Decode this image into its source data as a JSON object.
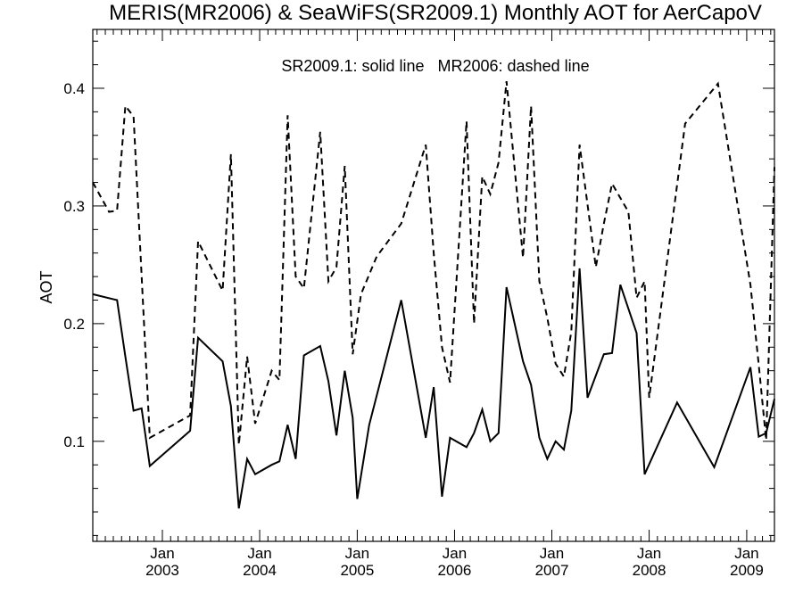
{
  "chart_data": {
    "type": "line",
    "title": "MERIS(MR2006) & SeaWiFS(SR2009.1) Monthly AOT for AerCapoV",
    "ylabel": "AOT",
    "annotation": "SR2009.1: solid line   MR2006: dashed line",
    "x_axis": {
      "type": "date",
      "range": [
        "2002-04-15",
        "2009-04-15"
      ],
      "ticks": [
        {
          "date": "2003-01-01",
          "month": "Jan",
          "year": "2003"
        },
        {
          "date": "2004-01-01",
          "month": "Jan",
          "year": "2004"
        },
        {
          "date": "2005-01-01",
          "month": "Jan",
          "year": "2005"
        },
        {
          "date": "2006-01-01",
          "month": "Jan",
          "year": "2006"
        },
        {
          "date": "2007-01-01",
          "month": "Jan",
          "year": "2007"
        },
        {
          "date": "2008-01-01",
          "month": "Jan",
          "year": "2008"
        },
        {
          "date": "2009-01-01",
          "month": "Jan",
          "year": "2009"
        }
      ]
    },
    "y_axis": {
      "range": [
        0.015,
        0.45
      ],
      "ticks": [
        0.1,
        0.2,
        0.3,
        0.4
      ],
      "tick_labels": [
        "0.1",
        "0.2",
        "0.3",
        "0.4"
      ]
    },
    "series": [
      {
        "name": "SR2009.1",
        "style": "solid",
        "color": "#000000",
        "points": [
          [
            "2002-04-15",
            0.225
          ],
          [
            "2002-07-15",
            0.22
          ],
          [
            "2002-08-15",
            0.172
          ],
          [
            "2002-09-15",
            0.126
          ],
          [
            "2002-10-15",
            0.128
          ],
          [
            "2002-11-15",
            0.079
          ],
          [
            "2003-04-15",
            0.109
          ],
          [
            "2003-05-15",
            0.188
          ],
          [
            "2003-08-15",
            0.168
          ],
          [
            "2003-09-15",
            0.13
          ],
          [
            "2003-10-15",
            0.043
          ],
          [
            "2003-11-15",
            0.085
          ],
          [
            "2003-12-15",
            0.072
          ],
          [
            "2004-02-15",
            0.08
          ],
          [
            "2004-03-15",
            0.083
          ],
          [
            "2004-04-15",
            0.114
          ],
          [
            "2004-05-15",
            0.085
          ],
          [
            "2004-06-15",
            0.173
          ],
          [
            "2004-08-15",
            0.181
          ],
          [
            "2004-09-15",
            0.151
          ],
          [
            "2004-10-15",
            0.105
          ],
          [
            "2004-11-15",
            0.16
          ],
          [
            "2004-12-15",
            0.12
          ],
          [
            "2005-01-01",
            0.051
          ],
          [
            "2005-02-15",
            0.114
          ],
          [
            "2005-06-15",
            0.22
          ],
          [
            "2005-09-15",
            0.103
          ],
          [
            "2005-10-15",
            0.146
          ],
          [
            "2005-11-15",
            0.053
          ],
          [
            "2005-12-15",
            0.103
          ],
          [
            "2006-02-15",
            0.095
          ],
          [
            "2006-03-15",
            0.107
          ],
          [
            "2006-04-15",
            0.127
          ],
          [
            "2006-05-15",
            0.1
          ],
          [
            "2006-06-15",
            0.107
          ],
          [
            "2006-07-15",
            0.231
          ],
          [
            "2006-09-15",
            0.168
          ],
          [
            "2006-10-15",
            0.148
          ],
          [
            "2006-11-15",
            0.103
          ],
          [
            "2006-12-15",
            0.085
          ],
          [
            "2007-01-15",
            0.1
          ],
          [
            "2007-02-15",
            0.093
          ],
          [
            "2007-03-15",
            0.126
          ],
          [
            "2007-04-15",
            0.247
          ],
          [
            "2007-05-15",
            0.137
          ],
          [
            "2007-07-15",
            0.174
          ],
          [
            "2007-08-15",
            0.175
          ],
          [
            "2007-09-15",
            0.233
          ],
          [
            "2007-11-15",
            0.192
          ],
          [
            "2007-12-15",
            0.072
          ],
          [
            "2008-04-15",
            0.133
          ],
          [
            "2008-09-01",
            0.078
          ],
          [
            "2009-01-15",
            0.163
          ],
          [
            "2009-02-15",
            0.104
          ],
          [
            "2009-03-15",
            0.107
          ],
          [
            "2009-04-15",
            0.136
          ]
        ]
      },
      {
        "name": "MR2006",
        "style": "dashed",
        "color": "#000000",
        "points": [
          [
            "2002-04-15",
            0.32
          ],
          [
            "2002-06-15",
            0.295
          ],
          [
            "2002-07-15",
            0.296
          ],
          [
            "2002-08-15",
            0.385
          ],
          [
            "2002-09-15",
            0.376
          ],
          [
            "2002-11-15",
            0.103
          ],
          [
            "2003-04-15",
            0.122
          ],
          [
            "2003-05-15",
            0.27
          ],
          [
            "2003-08-15",
            0.228
          ],
          [
            "2003-09-15",
            0.344
          ],
          [
            "2003-10-15",
            0.097
          ],
          [
            "2003-11-15",
            0.172
          ],
          [
            "2003-12-15",
            0.115
          ],
          [
            "2004-02-15",
            0.16
          ],
          [
            "2004-03-15",
            0.152
          ],
          [
            "2004-04-15",
            0.377
          ],
          [
            "2004-05-15",
            0.24
          ],
          [
            "2004-06-15",
            0.23
          ],
          [
            "2004-08-15",
            0.363
          ],
          [
            "2004-09-15",
            0.236
          ],
          [
            "2004-10-15",
            0.248
          ],
          [
            "2004-11-15",
            0.334
          ],
          [
            "2004-12-15",
            0.174
          ],
          [
            "2005-01-15",
            0.225
          ],
          [
            "2005-03-15",
            0.257
          ],
          [
            "2005-06-15",
            0.285
          ],
          [
            "2005-09-15",
            0.352
          ],
          [
            "2005-10-15",
            0.26
          ],
          [
            "2005-11-15",
            0.18
          ],
          [
            "2005-12-15",
            0.15
          ],
          [
            "2006-02-15",
            0.372
          ],
          [
            "2006-03-15",
            0.2
          ],
          [
            "2006-04-15",
            0.325
          ],
          [
            "2006-05-15",
            0.31
          ],
          [
            "2006-06-15",
            0.337
          ],
          [
            "2006-07-15",
            0.406
          ],
          [
            "2006-09-15",
            0.256
          ],
          [
            "2006-10-15",
            0.385
          ],
          [
            "2006-11-15",
            0.236
          ],
          [
            "2006-12-15",
            0.205
          ],
          [
            "2007-01-15",
            0.166
          ],
          [
            "2007-02-15",
            0.155
          ],
          [
            "2007-03-15",
            0.193
          ],
          [
            "2007-04-15",
            0.352
          ],
          [
            "2007-06-15",
            0.248
          ],
          [
            "2007-07-15",
            0.285
          ],
          [
            "2007-08-15",
            0.319
          ],
          [
            "2007-10-15",
            0.295
          ],
          [
            "2007-11-15",
            0.222
          ],
          [
            "2007-12-15",
            0.236
          ],
          [
            "2008-01-01",
            0.137
          ],
          [
            "2008-05-15",
            0.37
          ],
          [
            "2008-09-15",
            0.404
          ],
          [
            "2009-01-15",
            0.233
          ],
          [
            "2009-02-15",
            0.165
          ],
          [
            "2009-03-15",
            0.101
          ],
          [
            "2009-04-15",
            0.333
          ]
        ]
      }
    ]
  }
}
